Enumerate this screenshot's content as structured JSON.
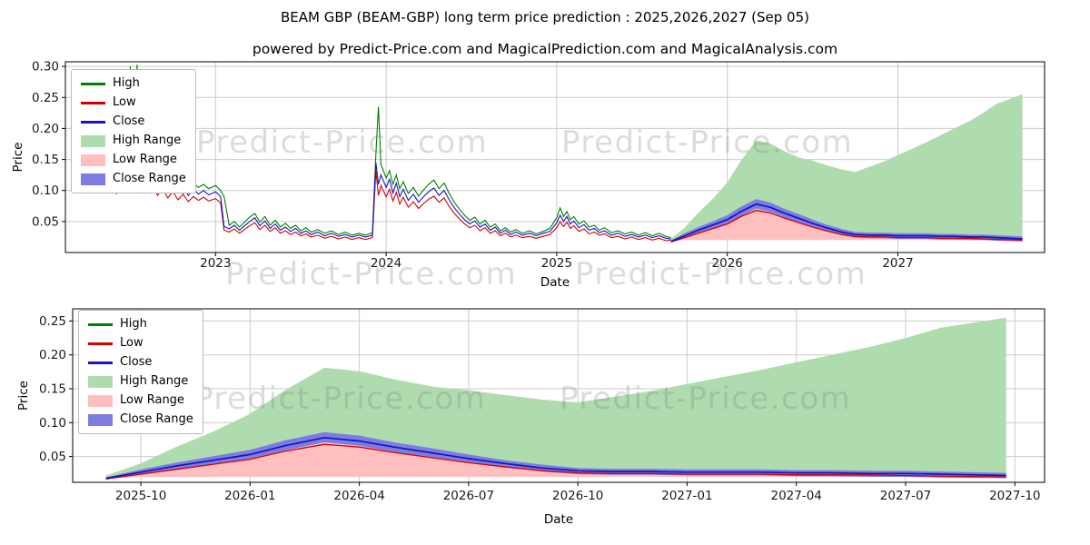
{
  "header": {
    "title": "BEAM GBP (BEAM-GBP) long term price prediction : 2025,2026,2027 (Sep 05)",
    "subtitle": "powered by Predict-Price.com and MagicalPrediction.com and MagicalAnalysis.com"
  },
  "watermark": {
    "text": "Predict-Price.com"
  },
  "legend": {
    "items": [
      {
        "label": "High",
        "type": "line",
        "color": "#008000"
      },
      {
        "label": "Low",
        "type": "line",
        "color": "#d40000"
      },
      {
        "label": "Close",
        "type": "line",
        "color": "#1414c8"
      },
      {
        "label": "High Range",
        "type": "patch",
        "color": "#afdcaf"
      },
      {
        "label": "Low Range",
        "type": "patch",
        "color": "#ffbfbf"
      },
      {
        "label": "Close Range",
        "type": "patch",
        "color": "#7d7de1"
      }
    ]
  },
  "colors": {
    "high": "#008000",
    "low": "#d40000",
    "close": "#1414c8",
    "high_range": "#afdcaf",
    "low_range": "#ffbfbf",
    "close_range": "#7d7de1"
  },
  "chart_data": {
    "type": "line",
    "title": "BEAM GBP (BEAM-GBP) long term price prediction : 2025,2026,2027 (Sep 05)",
    "xlabel": "Date",
    "ylabel": "Price",
    "grid": true,
    "legend_position": "upper-left",
    "history": {
      "description": "historical High/Low/Close, columns [year, high, low, close]",
      "points": [
        [
          2022.37,
          0.128,
          0.102,
          0.115
        ],
        [
          2022.4,
          0.15,
          0.118,
          0.135
        ],
        [
          2022.42,
          0.122,
          0.094,
          0.105
        ],
        [
          2022.44,
          0.158,
          0.125,
          0.142
        ],
        [
          2022.46,
          0.132,
          0.104,
          0.118
        ],
        [
          2022.48,
          0.168,
          0.132,
          0.15
        ],
        [
          2022.5,
          0.3,
          0.11,
          0.125
        ],
        [
          2022.52,
          0.165,
          0.128,
          0.148
        ],
        [
          2022.54,
          0.303,
          0.112,
          0.128
        ],
        [
          2022.56,
          0.172,
          0.135,
          0.152
        ],
        [
          2022.58,
          0.19,
          0.115,
          0.13
        ],
        [
          2022.6,
          0.126,
          0.098,
          0.112
        ],
        [
          2022.63,
          0.138,
          0.108,
          0.124
        ],
        [
          2022.66,
          0.118,
          0.092,
          0.104
        ],
        [
          2022.69,
          0.13,
          0.104,
          0.118
        ],
        [
          2022.72,
          0.112,
          0.088,
          0.1
        ],
        [
          2022.75,
          0.124,
          0.098,
          0.112
        ],
        [
          2022.78,
          0.108,
          0.085,
          0.096
        ],
        [
          2022.81,
          0.118,
          0.094,
          0.106
        ],
        [
          2022.84,
          0.104,
          0.082,
          0.092
        ],
        [
          2022.87,
          0.112,
          0.09,
          0.102
        ],
        [
          2022.9,
          0.105,
          0.084,
          0.094
        ],
        [
          2022.93,
          0.11,
          0.089,
          0.1
        ],
        [
          2022.96,
          0.103,
          0.083,
          0.093
        ],
        [
          2023.0,
          0.108,
          0.087,
          0.098
        ],
        [
          2023.03,
          0.1,
          0.08,
          0.09
        ],
        [
          2023.05,
          0.09,
          0.036,
          0.042
        ],
        [
          2023.08,
          0.044,
          0.033,
          0.038
        ],
        [
          2023.11,
          0.05,
          0.038,
          0.044
        ],
        [
          2023.14,
          0.041,
          0.031,
          0.036
        ],
        [
          2023.17,
          0.049,
          0.037,
          0.043
        ],
        [
          2023.2,
          0.057,
          0.043,
          0.05
        ],
        [
          2023.23,
          0.063,
          0.048,
          0.056
        ],
        [
          2023.26,
          0.049,
          0.037,
          0.043
        ],
        [
          2023.29,
          0.058,
          0.044,
          0.051
        ],
        [
          2023.32,
          0.044,
          0.034,
          0.039
        ],
        [
          2023.35,
          0.052,
          0.04,
          0.046
        ],
        [
          2023.38,
          0.041,
          0.031,
          0.036
        ],
        [
          2023.41,
          0.047,
          0.035,
          0.041
        ],
        [
          2023.44,
          0.039,
          0.029,
          0.034
        ],
        [
          2023.47,
          0.044,
          0.033,
          0.039
        ],
        [
          2023.5,
          0.035,
          0.027,
          0.031
        ],
        [
          2023.53,
          0.04,
          0.03,
          0.035
        ],
        [
          2023.56,
          0.033,
          0.025,
          0.029
        ],
        [
          2023.6,
          0.037,
          0.028,
          0.033
        ],
        [
          2023.64,
          0.031,
          0.023,
          0.027
        ],
        [
          2023.68,
          0.035,
          0.026,
          0.031
        ],
        [
          2023.72,
          0.029,
          0.022,
          0.026
        ],
        [
          2023.76,
          0.033,
          0.025,
          0.029
        ],
        [
          2023.8,
          0.028,
          0.021,
          0.025
        ],
        [
          2023.84,
          0.031,
          0.024,
          0.028
        ],
        [
          2023.88,
          0.028,
          0.021,
          0.025
        ],
        [
          2023.92,
          0.032,
          0.024,
          0.028
        ],
        [
          2023.94,
          0.158,
          0.132,
          0.145
        ],
        [
          2023.955,
          0.235,
          0.092,
          0.11
        ],
        [
          2023.97,
          0.142,
          0.108,
          0.125
        ],
        [
          2024.0,
          0.12,
          0.09,
          0.105
        ],
        [
          2024.02,
          0.132,
          0.102,
          0.118
        ],
        [
          2024.04,
          0.11,
          0.083,
          0.096
        ],
        [
          2024.06,
          0.125,
          0.097,
          0.112
        ],
        [
          2024.08,
          0.103,
          0.078,
          0.09
        ],
        [
          2024.1,
          0.114,
          0.089,
          0.102
        ],
        [
          2024.13,
          0.095,
          0.073,
          0.084
        ],
        [
          2024.16,
          0.105,
          0.082,
          0.094
        ],
        [
          2024.19,
          0.091,
          0.071,
          0.081
        ],
        [
          2024.22,
          0.101,
          0.079,
          0.09
        ],
        [
          2024.25,
          0.11,
          0.086,
          0.098
        ],
        [
          2024.28,
          0.117,
          0.091,
          0.104
        ],
        [
          2024.31,
          0.103,
          0.081,
          0.092
        ],
        [
          2024.34,
          0.112,
          0.088,
          0.1
        ],
        [
          2024.37,
          0.095,
          0.074,
          0.085
        ],
        [
          2024.4,
          0.081,
          0.063,
          0.072
        ],
        [
          2024.43,
          0.07,
          0.054,
          0.062
        ],
        [
          2024.46,
          0.06,
          0.046,
          0.053
        ],
        [
          2024.49,
          0.052,
          0.04,
          0.046
        ],
        [
          2024.52,
          0.057,
          0.044,
          0.051
        ],
        [
          2024.55,
          0.046,
          0.035,
          0.041
        ],
        [
          2024.58,
          0.052,
          0.04,
          0.046
        ],
        [
          2024.61,
          0.041,
          0.031,
          0.036
        ],
        [
          2024.64,
          0.046,
          0.035,
          0.041
        ],
        [
          2024.67,
          0.035,
          0.027,
          0.031
        ],
        [
          2024.7,
          0.04,
          0.031,
          0.036
        ],
        [
          2024.73,
          0.033,
          0.025,
          0.029
        ],
        [
          2024.76,
          0.037,
          0.028,
          0.033
        ],
        [
          2024.8,
          0.031,
          0.024,
          0.028
        ],
        [
          2024.84,
          0.035,
          0.026,
          0.031
        ],
        [
          2024.88,
          0.03,
          0.023,
          0.027
        ],
        [
          2024.92,
          0.034,
          0.026,
          0.031
        ],
        [
          2024.96,
          0.039,
          0.029,
          0.034
        ],
        [
          2025.0,
          0.056,
          0.04,
          0.048
        ],
        [
          2025.02,
          0.072,
          0.05,
          0.06
        ],
        [
          2025.04,
          0.058,
          0.042,
          0.05
        ],
        [
          2025.06,
          0.066,
          0.049,
          0.058
        ],
        [
          2025.08,
          0.053,
          0.039,
          0.046
        ],
        [
          2025.1,
          0.058,
          0.043,
          0.051
        ],
        [
          2025.13,
          0.046,
          0.034,
          0.04
        ],
        [
          2025.16,
          0.051,
          0.038,
          0.045
        ],
        [
          2025.19,
          0.041,
          0.03,
          0.036
        ],
        [
          2025.22,
          0.044,
          0.033,
          0.039
        ],
        [
          2025.25,
          0.036,
          0.028,
          0.032
        ],
        [
          2025.28,
          0.04,
          0.03,
          0.035
        ],
        [
          2025.32,
          0.032,
          0.024,
          0.028
        ],
        [
          2025.36,
          0.035,
          0.026,
          0.031
        ],
        [
          2025.4,
          0.03,
          0.022,
          0.026
        ],
        [
          2025.44,
          0.033,
          0.025,
          0.029
        ],
        [
          2025.48,
          0.028,
          0.021,
          0.025
        ],
        [
          2025.52,
          0.032,
          0.024,
          0.028
        ],
        [
          2025.56,
          0.027,
          0.02,
          0.024
        ],
        [
          2025.6,
          0.031,
          0.023,
          0.027
        ],
        [
          2025.64,
          0.026,
          0.019,
          0.023
        ],
        [
          2025.67,
          0.024,
          0.02,
          0.022
        ]
      ]
    },
    "prediction": {
      "description": "forecast bands, columns [month, year, high_range_top, low, close, close_range_upper, close_range_lower]",
      "range_floor": 0.02,
      "points": [
        [
          "2025-09",
          2025.67,
          0.022,
          0.017,
          0.018,
          0.019,
          0.017
        ],
        [
          "2025-10",
          2025.75,
          0.04,
          0.024,
          0.027,
          0.031,
          0.023
        ],
        [
          "2025-11",
          2025.83,
          0.064,
          0.031,
          0.036,
          0.041,
          0.031
        ],
        [
          "2025-12",
          2025.92,
          0.088,
          0.039,
          0.045,
          0.051,
          0.039
        ],
        [
          "2026-01",
          2026.0,
          0.113,
          0.046,
          0.053,
          0.06,
          0.047
        ],
        [
          "2026-02",
          2026.08,
          0.148,
          0.058,
          0.066,
          0.074,
          0.059
        ],
        [
          "2026-03",
          2026.17,
          0.181,
          0.068,
          0.078,
          0.086,
          0.071
        ],
        [
          "2026-04",
          2026.25,
          0.176,
          0.064,
          0.073,
          0.081,
          0.066
        ],
        [
          "2026-05",
          2026.33,
          0.164,
          0.056,
          0.064,
          0.071,
          0.057
        ],
        [
          "2026-06",
          2026.42,
          0.153,
          0.048,
          0.055,
          0.062,
          0.049
        ],
        [
          "2026-07",
          2026.5,
          0.148,
          0.041,
          0.047,
          0.053,
          0.042
        ],
        [
          "2026-08",
          2026.58,
          0.141,
          0.035,
          0.04,
          0.045,
          0.035
        ],
        [
          "2026-09",
          2026.67,
          0.134,
          0.029,
          0.033,
          0.038,
          0.028
        ],
        [
          "2026-10",
          2026.75,
          0.13,
          0.026,
          0.029,
          0.033,
          0.024
        ],
        [
          "2026-11",
          2026.83,
          0.138,
          0.025,
          0.028,
          0.032,
          0.023
        ],
        [
          "2026-12",
          2026.92,
          0.147,
          0.025,
          0.028,
          0.032,
          0.023
        ],
        [
          "2027-01",
          2027.0,
          0.157,
          0.024,
          0.027,
          0.031,
          0.022
        ],
        [
          "2027-02",
          2027.08,
          0.167,
          0.024,
          0.027,
          0.031,
          0.022
        ],
        [
          "2027-03",
          2027.17,
          0.178,
          0.024,
          0.027,
          0.031,
          0.022
        ],
        [
          "2027-04",
          2027.25,
          0.189,
          0.023,
          0.026,
          0.03,
          0.021
        ],
        [
          "2027-05",
          2027.33,
          0.2,
          0.023,
          0.026,
          0.03,
          0.021
        ],
        [
          "2027-06",
          2027.42,
          0.212,
          0.023,
          0.025,
          0.029,
          0.02
        ],
        [
          "2027-07",
          2027.5,
          0.225,
          0.022,
          0.025,
          0.029,
          0.02
        ],
        [
          "2027-08",
          2027.58,
          0.24,
          0.021,
          0.024,
          0.028,
          0.019
        ],
        [
          "2027-09",
          2027.73,
          0.255,
          0.02,
          0.022,
          0.026,
          0.018
        ]
      ]
    },
    "charts": [
      {
        "name": "top",
        "show": "history+prediction",
        "xlim": [
          2022.12,
          2027.86
        ],
        "ylim": [
          0,
          0.3075
        ],
        "yticks": [
          0.05,
          0.1,
          0.15,
          0.2,
          0.25,
          0.3
        ],
        "xticks": [
          {
            "v": 2023,
            "label": "2023"
          },
          {
            "v": 2024,
            "label": "2024"
          },
          {
            "v": 2025,
            "label": "2025"
          },
          {
            "v": 2026,
            "label": "2026"
          },
          {
            "v": 2027,
            "label": "2027"
          }
        ]
      },
      {
        "name": "bottom",
        "show": "prediction",
        "xlim": [
          2025.594,
          2027.818
        ],
        "ylim": [
          0.012,
          0.268
        ],
        "yticks": [
          0.05,
          0.1,
          0.15,
          0.2,
          0.25
        ],
        "xticks": [
          {
            "v": 2025.75,
            "label": "2025-10"
          },
          {
            "v": 2026.0,
            "label": "2026-01"
          },
          {
            "v": 2026.25,
            "label": "2026-04"
          },
          {
            "v": 2026.5,
            "label": "2026-07"
          },
          {
            "v": 2026.75,
            "label": "2026-10"
          },
          {
            "v": 2027.0,
            "label": "2027-01"
          },
          {
            "v": 2027.25,
            "label": "2027-04"
          },
          {
            "v": 2027.5,
            "label": "2027-07"
          },
          {
            "v": 2027.75,
            "label": "2027-10"
          }
        ]
      }
    ]
  }
}
